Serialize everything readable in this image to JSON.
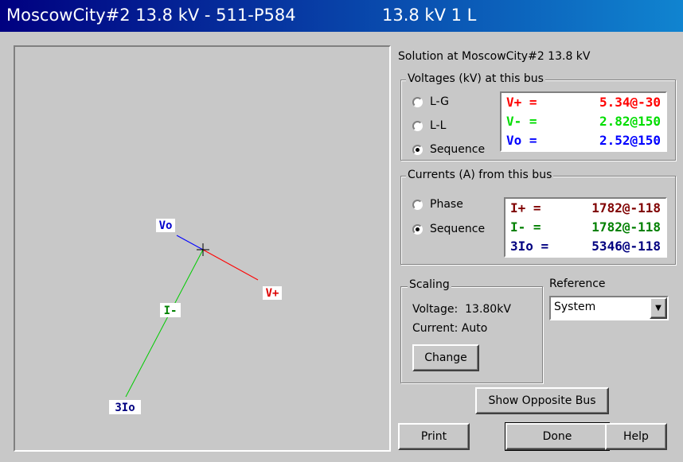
{
  "title_bar": {
    "title": "MoscowCity#2 13.8 kV - 511-P584",
    "subtitle": "13.8 kV 1 L"
  },
  "phasor_diagram": {
    "labels": {
      "vo": "Vo",
      "v_plus": "V+",
      "i_minus": "I-",
      "three_io": "3Io"
    }
  },
  "solution": {
    "heading": "Solution at MoscowCity#2 13.8 kV",
    "voltages": {
      "legend": "Voltages (kV) at this bus",
      "options": [
        "L-G",
        "L-L",
        "Sequence"
      ],
      "selected": 2,
      "rows": [
        {
          "name": "V+ =",
          "value": "5.34@-30",
          "color": "#ff0000"
        },
        {
          "name": "V- =",
          "value": "2.82@150",
          "color": "#00dd00"
        },
        {
          "name": "Vo =",
          "value": "2.52@150",
          "color": "#0000ff"
        }
      ]
    },
    "currents": {
      "legend": "Currents (A) from this bus",
      "options": [
        "Phase",
        "Sequence"
      ],
      "selected": 1,
      "rows": [
        {
          "name": "I+ =",
          "value": "1782@-118",
          "color": "#800000"
        },
        {
          "name": "I- =",
          "value": "1782@-118",
          "color": "#008000"
        },
        {
          "name": "3Io =",
          "value": "5346@-118",
          "color": "#000080"
        }
      ]
    }
  },
  "scaling": {
    "legend": "Scaling",
    "voltage": "Voltage:  13.80kV",
    "current": "Current: Auto",
    "button": "Change"
  },
  "reference": {
    "label": "Reference",
    "value": "System"
  },
  "buttons": {
    "opposite": "Show Opposite Bus",
    "print": "Print",
    "done": "Done",
    "help": "Help"
  }
}
